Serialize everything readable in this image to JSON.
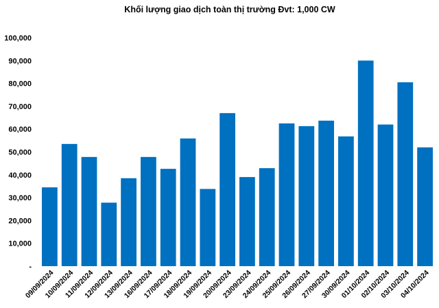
{
  "chart_data": {
    "type": "bar",
    "title": "Khối lượng giao dịch toàn thị trường Đvt: 1,000 CW",
    "xlabel": "",
    "ylabel": "",
    "ylim": [
      0,
      100000
    ],
    "y_ticks": [
      "-",
      "10,000",
      "20,000",
      "30,000",
      "40,000",
      "50,000",
      "60,000",
      "70,000",
      "80,000",
      "90,000",
      "100,000"
    ],
    "grid": false,
    "legend": "none",
    "bar_color": "#0070C0",
    "categories": [
      "09/09/2024",
      "10/09/2024",
      "11/09/2024",
      "12/09/2024",
      "13/09/2024",
      "16/09/2024",
      "17/09/2024",
      "18/09/2024",
      "19/09/2024",
      "20/09/2024",
      "23/09/2024",
      "24/09/2024",
      "25/09/2024",
      "26/09/2024",
      "27/09/2024",
      "30/09/2024",
      "01/10/2024",
      "02/10/2024",
      "03/10/2024",
      "04/10/2024"
    ],
    "values": [
      34500,
      53500,
      47800,
      27800,
      38500,
      47800,
      42600,
      55900,
      33800,
      67000,
      39000,
      42900,
      62500,
      61300,
      63700,
      56800,
      90000,
      62000,
      80500,
      52000
    ]
  }
}
